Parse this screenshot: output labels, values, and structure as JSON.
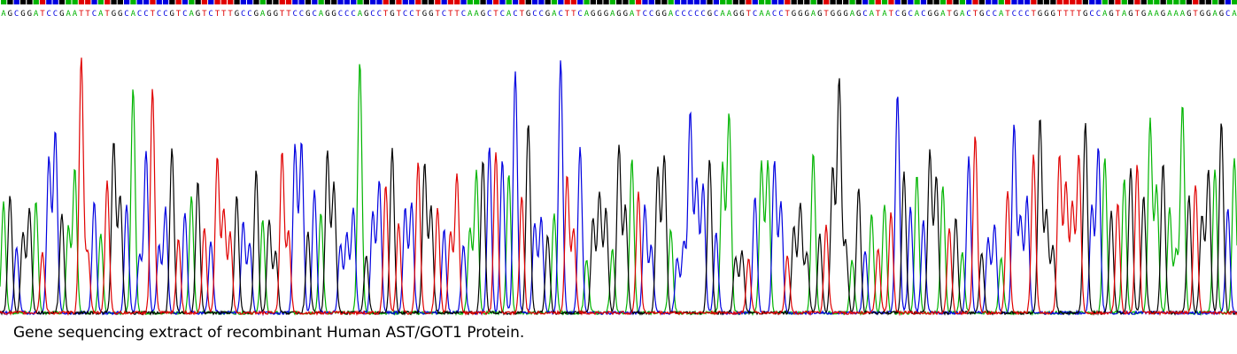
{
  "caption": "Gene sequencing extract of recombinant Human AST/GOT1 Protein.",
  "colors": {
    "A": "#00b400",
    "C": "#0000e0",
    "G": "#000000",
    "T": "#e00000",
    "background": "#ffffff",
    "caption_text": "#000000"
  },
  "chart_data": {
    "type": "line",
    "xlabel": "",
    "ylabel": "",
    "grid": false,
    "legend": "none",
    "ylim": [
      0,
      100
    ],
    "base_calls": "AGCGGATCCGAATTCATGGCACCTCCGTCAGTCTTTGCCGAGGTTCCGCAGGCCCAGCCTGTCCTGGTCTTCAAGCTCACTGCCGACTTCAGGGAGGATCCGGACCCCCGCAAGGTCAACCTGGGAGTGGGAGCATATCGCACGGATGACTGCCATCCCTGGGTTTTGCCAGTAGTGAAGAAAGTGGAGCA",
    "series": [
      {
        "name": "A",
        "channel": "A",
        "peaks": [
          {
            "i": 12,
            "h": 98
          },
          {
            "i": 20,
            "h": 86
          },
          {
            "i": 55,
            "h": 96
          },
          {
            "i": 81,
            "h": 73
          },
          {
            "i": 112,
            "h": 77
          },
          {
            "i": 129,
            "h": 90
          },
          {
            "i": 138,
            "h": 84
          },
          {
            "i": 156,
            "h": 72
          },
          {
            "i": 177,
            "h": 74
          },
          {
            "i": 188,
            "h": 73
          },
          {
            "i": 197,
            "h": 72
          },
          {
            "i": 199,
            "h": 70
          }
        ]
      },
      {
        "name": "C",
        "channel": "C",
        "peaks": [
          {
            "i": 33,
            "h": 60
          },
          {
            "i": 50,
            "h": 62
          },
          {
            "i": 64,
            "h": 58
          }
        ]
      },
      {
        "name": "G",
        "channel": "G",
        "peaks": [
          {
            "i": 23,
            "h": 86
          },
          {
            "i": 60,
            "h": 63
          },
          {
            "i": 79,
            "h": 93
          },
          {
            "i": 86,
            "h": 97
          },
          {
            "i": 106,
            "h": 77
          },
          {
            "i": 125,
            "h": 62
          },
          {
            "i": 150,
            "h": 68
          },
          {
            "i": 160,
            "h": 75
          },
          {
            "i": 167,
            "h": 73
          },
          {
            "i": 182,
            "h": 80
          },
          {
            "i": 194,
            "h": 86
          },
          {
            "i": 200,
            "h": 75
          }
        ]
      },
      {
        "name": "T",
        "channel": "T",
        "peaks": [
          {
            "i": 8,
            "h": 70
          },
          {
            "i": 17,
            "h": 66
          },
          {
            "i": 45,
            "h": 64
          },
          {
            "i": 46,
            "h": 65
          },
          {
            "i": 119,
            "h": 58
          },
          {
            "i": 175,
            "h": 57
          },
          {
            "i": 186,
            "h": 55
          }
        ]
      }
    ]
  }
}
